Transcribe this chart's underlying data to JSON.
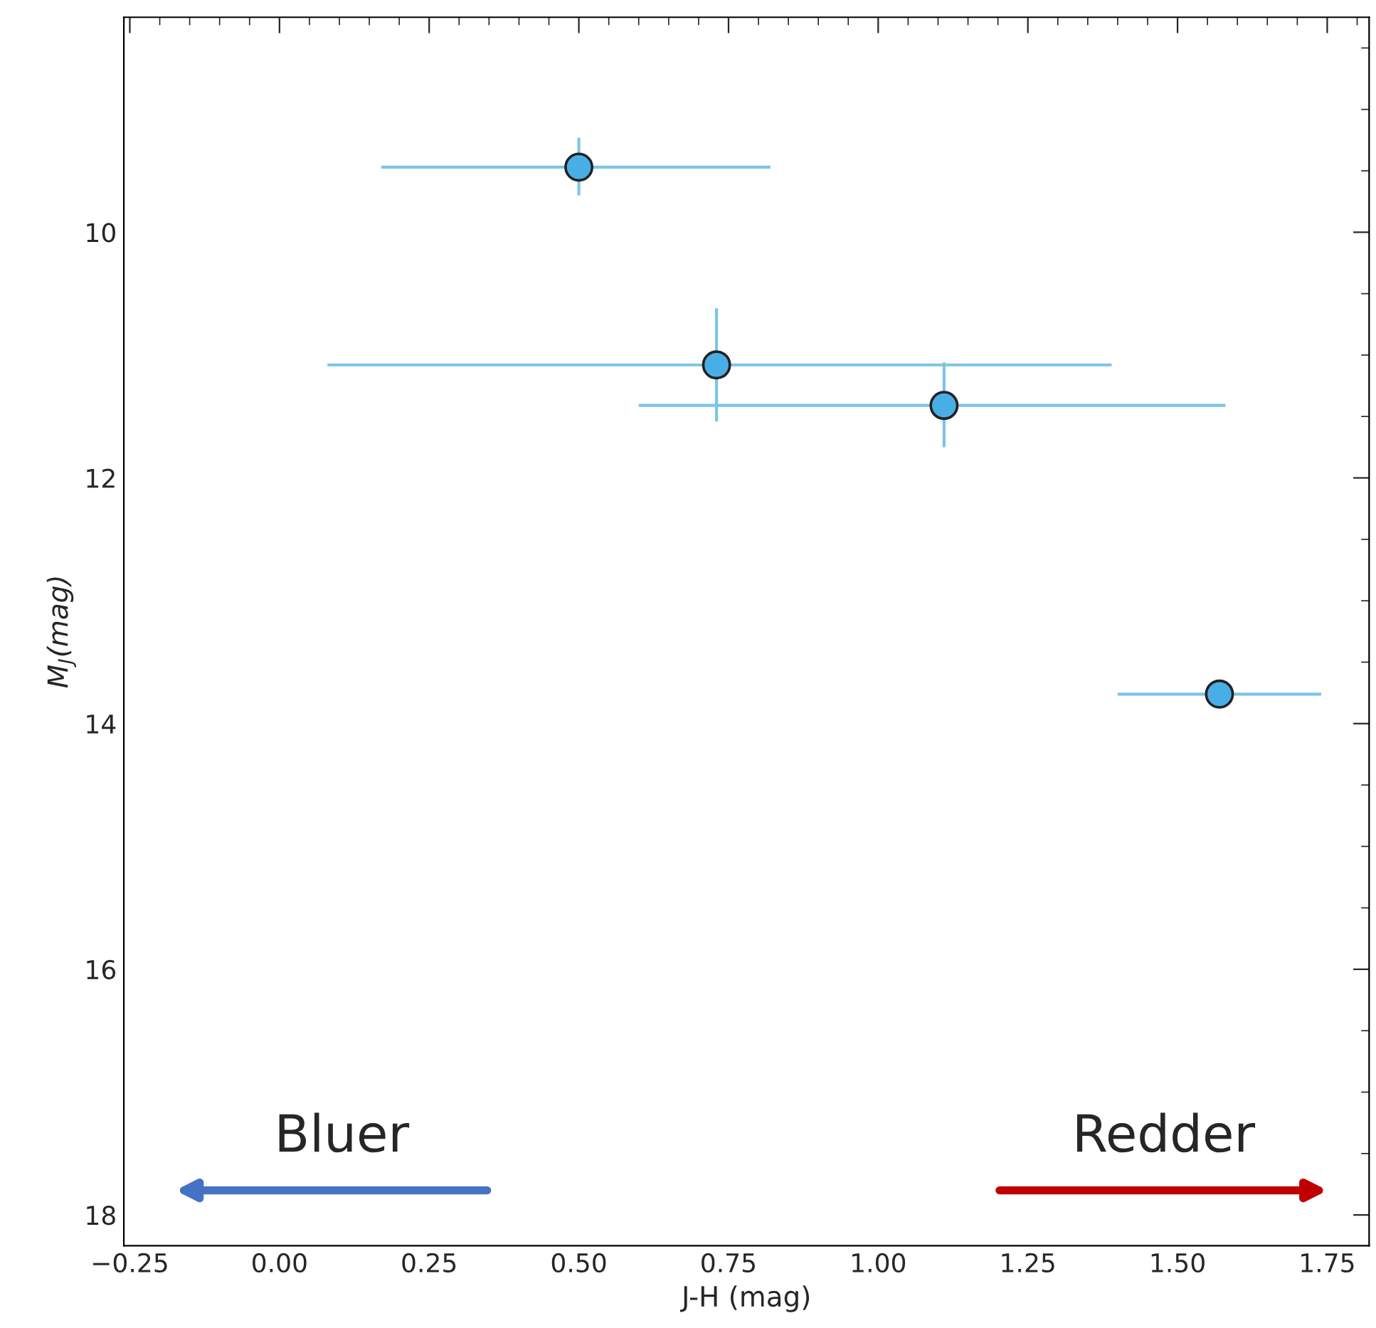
{
  "chart_data": {
    "type": "scatter",
    "xlabel": "J-H (mag)",
    "ylabel": "M$_{J}$(mag)",
    "x": [
      0.5,
      0.73,
      1.11,
      1.57
    ],
    "series": [
      {
        "color": "#4aaee6",
        "values": [
          9.47,
          11.08,
          11.41,
          13.76
        ],
        "errors": [
          [
            9.23,
            9.7
          ],
          [
            10.62,
            11.54
          ],
          [
            11.06,
            11.75
          ],
          null
        ],
        "xerrors": [
          [
            0.17,
            0.82
          ],
          [
            0.08,
            1.39
          ],
          [
            0.6,
            1.58
          ],
          [
            1.4,
            1.74
          ]
        ]
      }
    ],
    "xlim": [
      -0.26,
      1.82
    ],
    "xticks": [
      {
        "value": -0.25,
        "label": "−0.25"
      },
      {
        "value": 0,
        "label": "0.00"
      },
      {
        "value": 0.25,
        "label": "0.25"
      },
      {
        "value": 0.5,
        "label": "0.50"
      },
      {
        "value": 0.75,
        "label": "0.75"
      },
      {
        "value": 1.0,
        "label": "1.00"
      },
      {
        "value": 1.25,
        "label": "1.25"
      },
      {
        "value": 1.5,
        "label": "1.50"
      },
      {
        "value": 1.75,
        "label": "1.75"
      }
    ],
    "ylim": [
      18.25,
      8.25
    ],
    "yticks": [
      10,
      12,
      14,
      16,
      18
    ],
    "marker": "circle",
    "grid": false,
    "legend": false,
    "annotations": [
      "Bluer",
      "Redder"
    ]
  }
}
